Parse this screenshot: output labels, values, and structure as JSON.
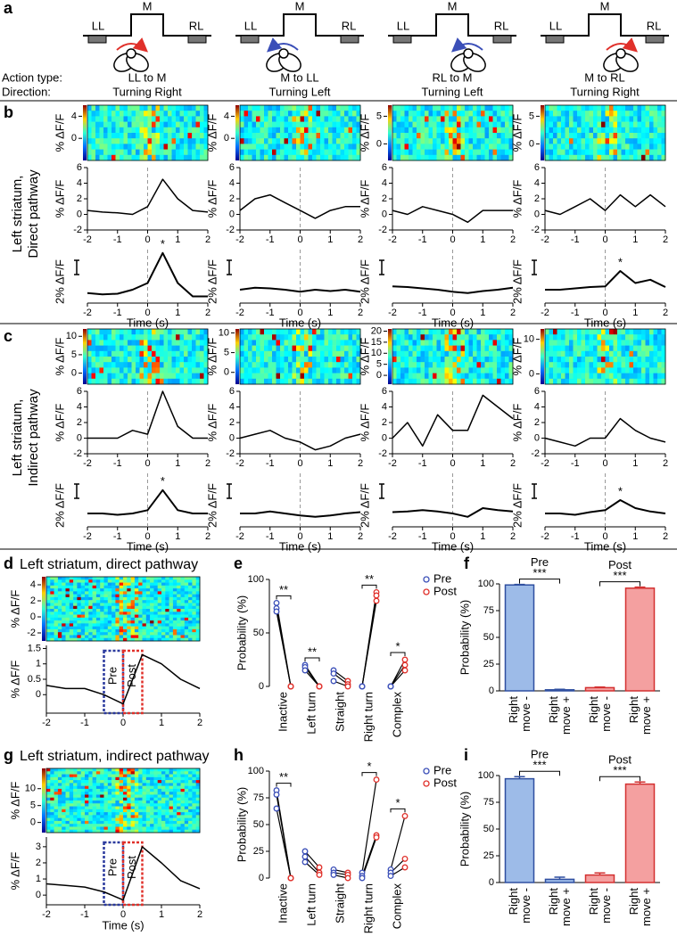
{
  "panel_a": {
    "label": "a",
    "row_labels": [
      "Action type:",
      "Direction:"
    ],
    "positions": [
      "LL",
      "M",
      "RL"
    ],
    "actions": [
      {
        "type": "LL to M",
        "direction": "Turning Right",
        "color": "#e0302a"
      },
      {
        "type": "M to LL",
        "direction": "Turning Left",
        "color": "#3b4fb8"
      },
      {
        "type": "RL to M",
        "direction": "Turning Left",
        "color": "#3b4fb8"
      },
      {
        "type": "M to RL",
        "direction": "Turning Right",
        "color": "#e0302a"
      }
    ]
  },
  "time_axis": {
    "x": [
      -2,
      -1.5,
      -1,
      -0.5,
      0,
      0.5,
      1,
      1.5,
      2
    ],
    "xlim": [
      -2,
      2
    ],
    "xticks": [
      -2,
      -1,
      0,
      1,
      2
    ],
    "label": "Time (s)"
  },
  "panel_b": {
    "label": "b",
    "row_title": [
      "Left striatum,",
      "Direct pathway"
    ],
    "heatmap_ylabel": "% ΔF/F",
    "trace_ylabel": "% ΔF/F",
    "scale_label": "2% ΔF/F",
    "mean_ylim": [
      -2,
      6
    ],
    "mean_yticks": [
      -2,
      0,
      2,
      4,
      6
    ],
    "average_ylim": [
      -2,
      6
    ],
    "columns": [
      {
        "heatmap_ylim": [
          -4,
          6
        ],
        "heatmap_yticks": [
          0,
          4
        ],
        "mean": [
          0.5,
          0.3,
          0.2,
          0,
          1,
          4.5,
          2,
          0.5,
          0.3
        ],
        "average": [
          -0.5,
          -0.7,
          -0.6,
          0,
          1,
          5.5,
          1,
          -1,
          -1
        ],
        "annotation": "*"
      },
      {
        "heatmap_ylim": [
          -4,
          6
        ],
        "heatmap_yticks": [
          0,
          4
        ],
        "mean": [
          0.5,
          2,
          2.5,
          1.5,
          0.5,
          -0.5,
          0.5,
          1,
          1
        ],
        "average": [
          0,
          0.3,
          0.2,
          0,
          -0.3,
          0,
          -0.2,
          0,
          -0.3
        ]
      },
      {
        "heatmap_ylim": [
          -3,
          7
        ],
        "heatmap_yticks": [
          0,
          5
        ],
        "mean": [
          0.5,
          0,
          1,
          0.5,
          0,
          -1,
          0.5,
          0.5,
          0.5
        ],
        "average": [
          0.5,
          0.4,
          0.2,
          0,
          -0.3,
          -0.5,
          -0.2,
          0,
          0.3
        ]
      },
      {
        "heatmap_ylim": [
          -3,
          7
        ],
        "heatmap_yticks": [
          0,
          5
        ],
        "mean": [
          0.5,
          0,
          1,
          2,
          0.5,
          2.5,
          1,
          2.5,
          1
        ],
        "average": [
          0,
          0,
          0.2,
          0.4,
          0.5,
          2.8,
          1,
          1.5,
          0.4
        ],
        "annotation": "*"
      }
    ]
  },
  "panel_c": {
    "label": "c",
    "row_title": [
      "Left striatum,",
      "Indirect pathway"
    ],
    "heatmap_ylabel": "% ΔF/F",
    "trace_ylabel": "% ΔF/F",
    "scale_label": "2% ΔF/F",
    "mean_ylim": [
      -2,
      6
    ],
    "mean_yticks": [
      -2,
      0,
      2,
      4,
      6
    ],
    "average_ylim": [
      -2,
      6
    ],
    "columns": [
      {
        "heatmap_ylim": [
          -3,
          12
        ],
        "heatmap_yticks": [
          0,
          5,
          10
        ],
        "mean": [
          0,
          0,
          0,
          1,
          0.5,
          6,
          1.5,
          0,
          0
        ],
        "average": [
          0,
          0,
          -0.2,
          0,
          0.5,
          3.5,
          0.5,
          0,
          0
        ],
        "annotation": "*"
      },
      {
        "heatmap_ylim": [
          -3,
          11
        ],
        "heatmap_yticks": [
          0,
          5,
          10
        ],
        "mean": [
          0,
          0.5,
          1,
          0,
          -0.5,
          -1.5,
          -1,
          0,
          0.5
        ],
        "average": [
          0,
          0,
          0.3,
          0,
          -0.3,
          -0.5,
          -0.3,
          0,
          0.2
        ]
      },
      {
        "heatmap_ylim": [
          -4,
          21
        ],
        "heatmap_yticks": [
          0,
          5,
          10,
          15,
          20
        ],
        "mean": [
          0,
          2,
          -1,
          3,
          1,
          1,
          5.5,
          4,
          2.5
        ],
        "average": [
          0.2,
          0.3,
          0.5,
          0.3,
          0,
          -0.5,
          0.8,
          0.5,
          0.3
        ]
      },
      {
        "heatmap_ylim": [
          -3,
          13
        ],
        "heatmap_yticks": [
          0,
          10
        ],
        "mean": [
          0,
          -0.5,
          -1,
          0,
          0,
          2.5,
          1,
          0,
          -0.5
        ],
        "average": [
          0,
          0,
          -0.2,
          0.2,
          0.5,
          2,
          0.8,
          0.3,
          0
        ],
        "annotation": "*"
      }
    ]
  },
  "panel_d": {
    "label": "d",
    "title": "Left striatum, direct pathway",
    "heatmap_ylim": [
      -3,
      5
    ],
    "heatmap_yticks": [
      -2,
      0,
      2,
      4
    ],
    "ylabel": "% ΔF/F",
    "ylim": [
      -0.6,
      1.6
    ],
    "yticks": [
      0,
      0.5,
      1,
      1.5
    ],
    "values": [
      0.3,
      0.2,
      0.2,
      0,
      -0.3,
      1.3,
      1,
      0.5,
      0.2
    ],
    "windows": [
      {
        "label": "Pre",
        "range": [
          -0.5,
          0
        ],
        "color": "#2b3a9e"
      },
      {
        "label": "Post",
        "range": [
          0,
          0.5
        ],
        "color": "#e0302a"
      }
    ]
  },
  "panel_g": {
    "label": "g",
    "title": "Left striatum, indirect pathway",
    "heatmap_ylim": [
      -3,
      16
    ],
    "heatmap_yticks": [
      0,
      5,
      10
    ],
    "ylabel": "% ΔF/F",
    "ylim": [
      -0.6,
      3.6
    ],
    "yticks": [
      0,
      1,
      2,
      3
    ],
    "values": [
      0.7,
      0.6,
      0.5,
      0.2,
      -0.3,
      3,
      2,
      0.9,
      0.4
    ],
    "xlabel": "Time (s)",
    "windows": [
      {
        "label": "Pre",
        "range": [
          -0.5,
          0
        ],
        "color": "#2b3a9e"
      },
      {
        "label": "Post",
        "range": [
          0,
          0.5
        ],
        "color": "#e0302a"
      }
    ]
  },
  "panel_e": {
    "label": "e",
    "ylabel": "Probability (%)",
    "ylim": [
      0,
      100
    ],
    "yticks": [
      0,
      50,
      100
    ],
    "categories": [
      "Inactive",
      "Left turn",
      "Straight",
      "Right turn",
      "Complex"
    ],
    "series": [
      {
        "name": "Pre",
        "color": "#3b4fb8",
        "values": [
          [
            78,
            73,
            70
          ],
          [
            20,
            18,
            15
          ],
          [
            15,
            12,
            5
          ],
          [
            0,
            0,
            0
          ],
          [
            0,
            0,
            0
          ]
        ]
      },
      {
        "name": "Post",
        "color": "#e0302a",
        "values": [
          [
            0,
            0,
            0
          ],
          [
            0,
            0,
            0
          ],
          [
            5,
            2,
            0
          ],
          [
            88,
            85,
            80
          ],
          [
            25,
            20,
            15
          ]
        ]
      }
    ],
    "significance": [
      {
        "category": "Inactive",
        "label": "**"
      },
      {
        "category": "Left turn",
        "label": "**"
      },
      {
        "category": "Right turn",
        "label": "**"
      },
      {
        "category": "Complex",
        "label": "*"
      }
    ]
  },
  "panel_h": {
    "label": "h",
    "ylabel": "Probability (%)",
    "ylim": [
      0,
      100
    ],
    "yticks": [
      0,
      25,
      50,
      75,
      100
    ],
    "categories": [
      "Inactive",
      "Left turn",
      "Straight",
      "Right turn",
      "Complex"
    ],
    "series": [
      {
        "name": "Pre",
        "color": "#3b4fb8",
        "values": [
          [
            82,
            78,
            65
          ],
          [
            25,
            20,
            15
          ],
          [
            8,
            5,
            3
          ],
          [
            5,
            2,
            0
          ],
          [
            8,
            5,
            2
          ]
        ]
      },
      {
        "name": "Post",
        "color": "#e0302a",
        "values": [
          [
            0,
            0,
            0
          ],
          [
            10,
            5,
            3
          ],
          [
            5,
            3,
            0
          ],
          [
            92,
            40,
            38
          ],
          [
            58,
            18,
            10
          ]
        ]
      }
    ],
    "significance": [
      {
        "category": "Inactive",
        "label": "**"
      },
      {
        "category": "Right turn",
        "label": "*"
      },
      {
        "category": "Complex",
        "label": "*"
      }
    ]
  },
  "panel_f": {
    "label": "f",
    "ylabel": "Probability (%)",
    "ylim": [
      0,
      100
    ],
    "yticks": [
      0,
      25,
      50,
      75,
      100
    ],
    "categories": [
      [
        "Right",
        "move -"
      ],
      [
        "Right",
        "move +"
      ],
      [
        "Right",
        "move -"
      ],
      [
        "Right",
        "move +"
      ]
    ],
    "values": [
      99,
      1,
      3,
      96
    ],
    "errors": [
      0.5,
      0.5,
      0.5,
      1
    ],
    "colors": [
      "#9dbbe8",
      "#9dbbe8",
      "#f4a0a0",
      "#f4a0a0"
    ],
    "edge_colors": [
      "#2f4fa0",
      "#2f4fa0",
      "#d33030",
      "#d33030"
    ],
    "groups": [
      {
        "label": "Pre",
        "significance": "***"
      },
      {
        "label": "Post",
        "significance": "***"
      }
    ]
  },
  "panel_i": {
    "label": "i",
    "ylabel": "Probability (%)",
    "ylim": [
      0,
      100
    ],
    "yticks": [
      0,
      25,
      50,
      75,
      100
    ],
    "categories": [
      [
        "Right",
        "move -"
      ],
      [
        "Right",
        "move +"
      ],
      [
        "Right",
        "move -"
      ],
      [
        "Right",
        "move +"
      ]
    ],
    "values": [
      97,
      3,
      7,
      92
    ],
    "errors": [
      2,
      2,
      2,
      2
    ],
    "colors": [
      "#9dbbe8",
      "#9dbbe8",
      "#f4a0a0",
      "#f4a0a0"
    ],
    "edge_colors": [
      "#2f4fa0",
      "#2f4fa0",
      "#d33030",
      "#d33030"
    ],
    "groups": [
      {
        "label": "Pre",
        "significance": "***"
      },
      {
        "label": "Post",
        "significance": "***"
      }
    ]
  }
}
